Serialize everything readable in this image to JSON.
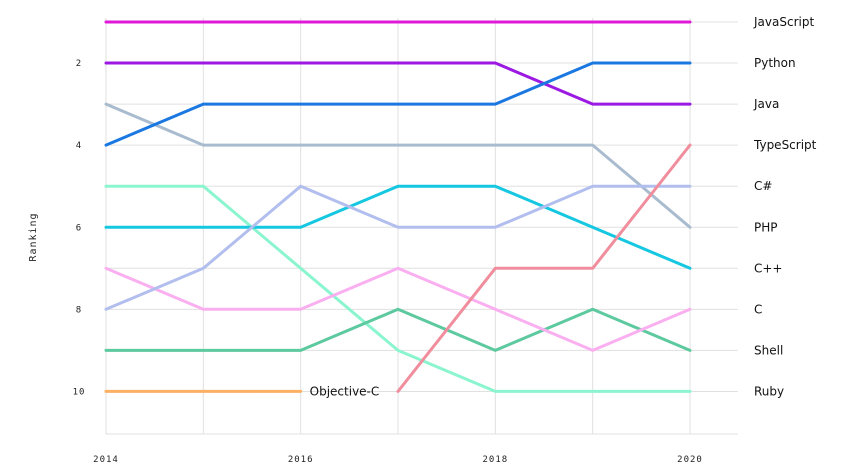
{
  "chart_data": {
    "type": "line",
    "ylabel": "Ranking",
    "xlabel": "",
    "x": [
      2014,
      2015,
      2016,
      2017,
      2018,
      2019,
      2020
    ],
    "x_tick_labels": [
      "2014",
      "2016",
      "2018",
      "2020"
    ],
    "y_tick_labels": [
      "2",
      "4",
      "6",
      "8",
      "10"
    ],
    "ylim": [
      11,
      0.5
    ],
    "y_inverted": true,
    "grid": true,
    "legend": "end-labels-right",
    "series": [
      {
        "name": "JavaScript",
        "color": "#e018d8",
        "values": [
          1,
          1,
          1,
          1,
          1,
          1,
          1
        ]
      },
      {
        "name": "Python",
        "color": "#1a78e0",
        "values": [
          4,
          3,
          3,
          3,
          3,
          2,
          2
        ]
      },
      {
        "name": "Java",
        "color": "#9c19e3",
        "values": [
          2,
          2,
          2,
          2,
          2,
          3,
          3
        ]
      },
      {
        "name": "TypeScript",
        "color": "#f08e9d",
        "values": [
          null,
          null,
          null,
          10,
          7,
          7,
          4
        ]
      },
      {
        "name": "C#",
        "color": "#b2bfee",
        "values": [
          8,
          7,
          5,
          6,
          6,
          5,
          5
        ]
      },
      {
        "name": "PHP",
        "color": "#a9bccf",
        "values": [
          3,
          4,
          4,
          4,
          4,
          4,
          6
        ]
      },
      {
        "name": "C++",
        "color": "#15c7e0",
        "values": [
          6,
          6,
          6,
          5,
          5,
          6,
          7
        ]
      },
      {
        "name": "C",
        "color": "#fab0f0",
        "values": [
          7,
          8,
          8,
          7,
          8,
          9,
          8
        ]
      },
      {
        "name": "Shell",
        "color": "#5dc99f",
        "values": [
          9,
          9,
          9,
          8,
          9,
          8,
          9
        ]
      },
      {
        "name": "Ruby",
        "color": "#8bf5cf",
        "values": [
          5,
          5,
          7,
          9,
          10,
          10,
          10
        ]
      },
      {
        "name": "Objective-C",
        "color": "#fbb064",
        "values": [
          10,
          10,
          10,
          null,
          null,
          null,
          null
        ]
      }
    ],
    "end_labels": [
      "JavaScript",
      "Python",
      "Java",
      "TypeScript",
      "C#",
      "PHP",
      "C++",
      "C",
      "Shell",
      "Ruby"
    ],
    "annotations": [
      {
        "text": "Objective-C",
        "x": 2016,
        "y": 10
      }
    ]
  }
}
